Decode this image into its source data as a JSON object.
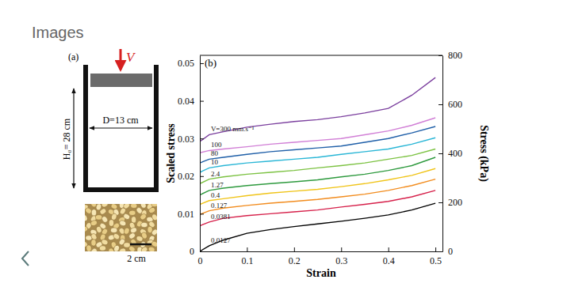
{
  "header": "Images",
  "schematic": {
    "panel_label": "(a)",
    "velocity_label": "V",
    "height_label": "H₀= 28 cm",
    "diameter_label": "D=13 cm"
  },
  "photo": {
    "scale_label": "2 cm"
  },
  "chart_data": {
    "type": "line",
    "annotations": [
      "(b)"
    ],
    "x_label": "Strain",
    "y_label": "Scaled stress",
    "y2_label": "Stress (kPa)",
    "x": [
      0,
      0.02,
      0.05,
      0.1,
      0.15,
      0.2,
      0.25,
      0.3,
      0.35,
      0.4,
      0.45,
      0.5
    ],
    "xlim": [
      0,
      0.515
    ],
    "xticks": [
      0,
      0.1,
      0.2,
      0.3,
      0.4,
      0.5
    ],
    "ylim": [
      0,
      0.0521
    ],
    "yticks": [
      0,
      0.01,
      0.02,
      0.03,
      0.04,
      0.05
    ],
    "y2lim": [
      0,
      800
    ],
    "y2ticks": [
      0,
      200,
      400,
      600,
      800
    ],
    "series": [
      {
        "name": "V=300 mm.s⁻¹",
        "color": "#7b3f9e",
        "values": [
          0.0292,
          0.031,
          0.0318,
          0.033,
          0.0338,
          0.0345,
          0.035,
          0.0358,
          0.0368,
          0.038,
          0.0415,
          0.0462
        ]
      },
      {
        "name": "100",
        "color": "#d17fd6",
        "values": [
          0.0262,
          0.0268,
          0.0272,
          0.0278,
          0.0285,
          0.029,
          0.0295,
          0.03,
          0.031,
          0.032,
          0.0335,
          0.0355
        ]
      },
      {
        "name": "80",
        "color": "#1f5fa8",
        "values": [
          0.0235,
          0.0245,
          0.025,
          0.0258,
          0.0265,
          0.027,
          0.0275,
          0.028,
          0.029,
          0.03,
          0.0315,
          0.0332
        ]
      },
      {
        "name": "10",
        "color": "#29b6d6",
        "values": [
          0.021,
          0.0222,
          0.0228,
          0.0235,
          0.024,
          0.0245,
          0.025,
          0.0258,
          0.0265,
          0.0272,
          0.0285,
          0.0302
        ]
      },
      {
        "name": "2.4",
        "color": "#7cc242",
        "values": [
          0.018,
          0.0192,
          0.0198,
          0.0205,
          0.021,
          0.0215,
          0.0222,
          0.0228,
          0.0235,
          0.0245,
          0.0255,
          0.0272
        ]
      },
      {
        "name": "1.27",
        "color": "#2e9a3e",
        "values": [
          0.015,
          0.0162,
          0.0168,
          0.0175,
          0.018,
          0.0185,
          0.019,
          0.0198,
          0.0205,
          0.0215,
          0.0228,
          0.025
        ]
      },
      {
        "name": "0.4",
        "color": "#f0c419",
        "values": [
          0.0125,
          0.0135,
          0.014,
          0.0148,
          0.0155,
          0.016,
          0.0165,
          0.0172,
          0.018,
          0.019,
          0.0202,
          0.022
        ]
      },
      {
        "name": "0.127",
        "color": "#f28c1e",
        "values": [
          0.0098,
          0.0108,
          0.0115,
          0.0122,
          0.0128,
          0.0133,
          0.0138,
          0.0145,
          0.0152,
          0.0162,
          0.0175,
          0.0192
        ]
      },
      {
        "name": "0.0381",
        "color": "#d6204a",
        "values": [
          0.0068,
          0.0078,
          0.0088,
          0.0095,
          0.01,
          0.0105,
          0.011,
          0.0118,
          0.0125,
          0.0133,
          0.0145,
          0.0162
        ]
      },
      {
        "name": "0.0127",
        "color": "#000000",
        "values": [
          0,
          0.0015,
          0.003,
          0.0048,
          0.0058,
          0.0066,
          0.0073,
          0.008,
          0.0088,
          0.0097,
          0.011,
          0.0128
        ]
      }
    ]
  }
}
